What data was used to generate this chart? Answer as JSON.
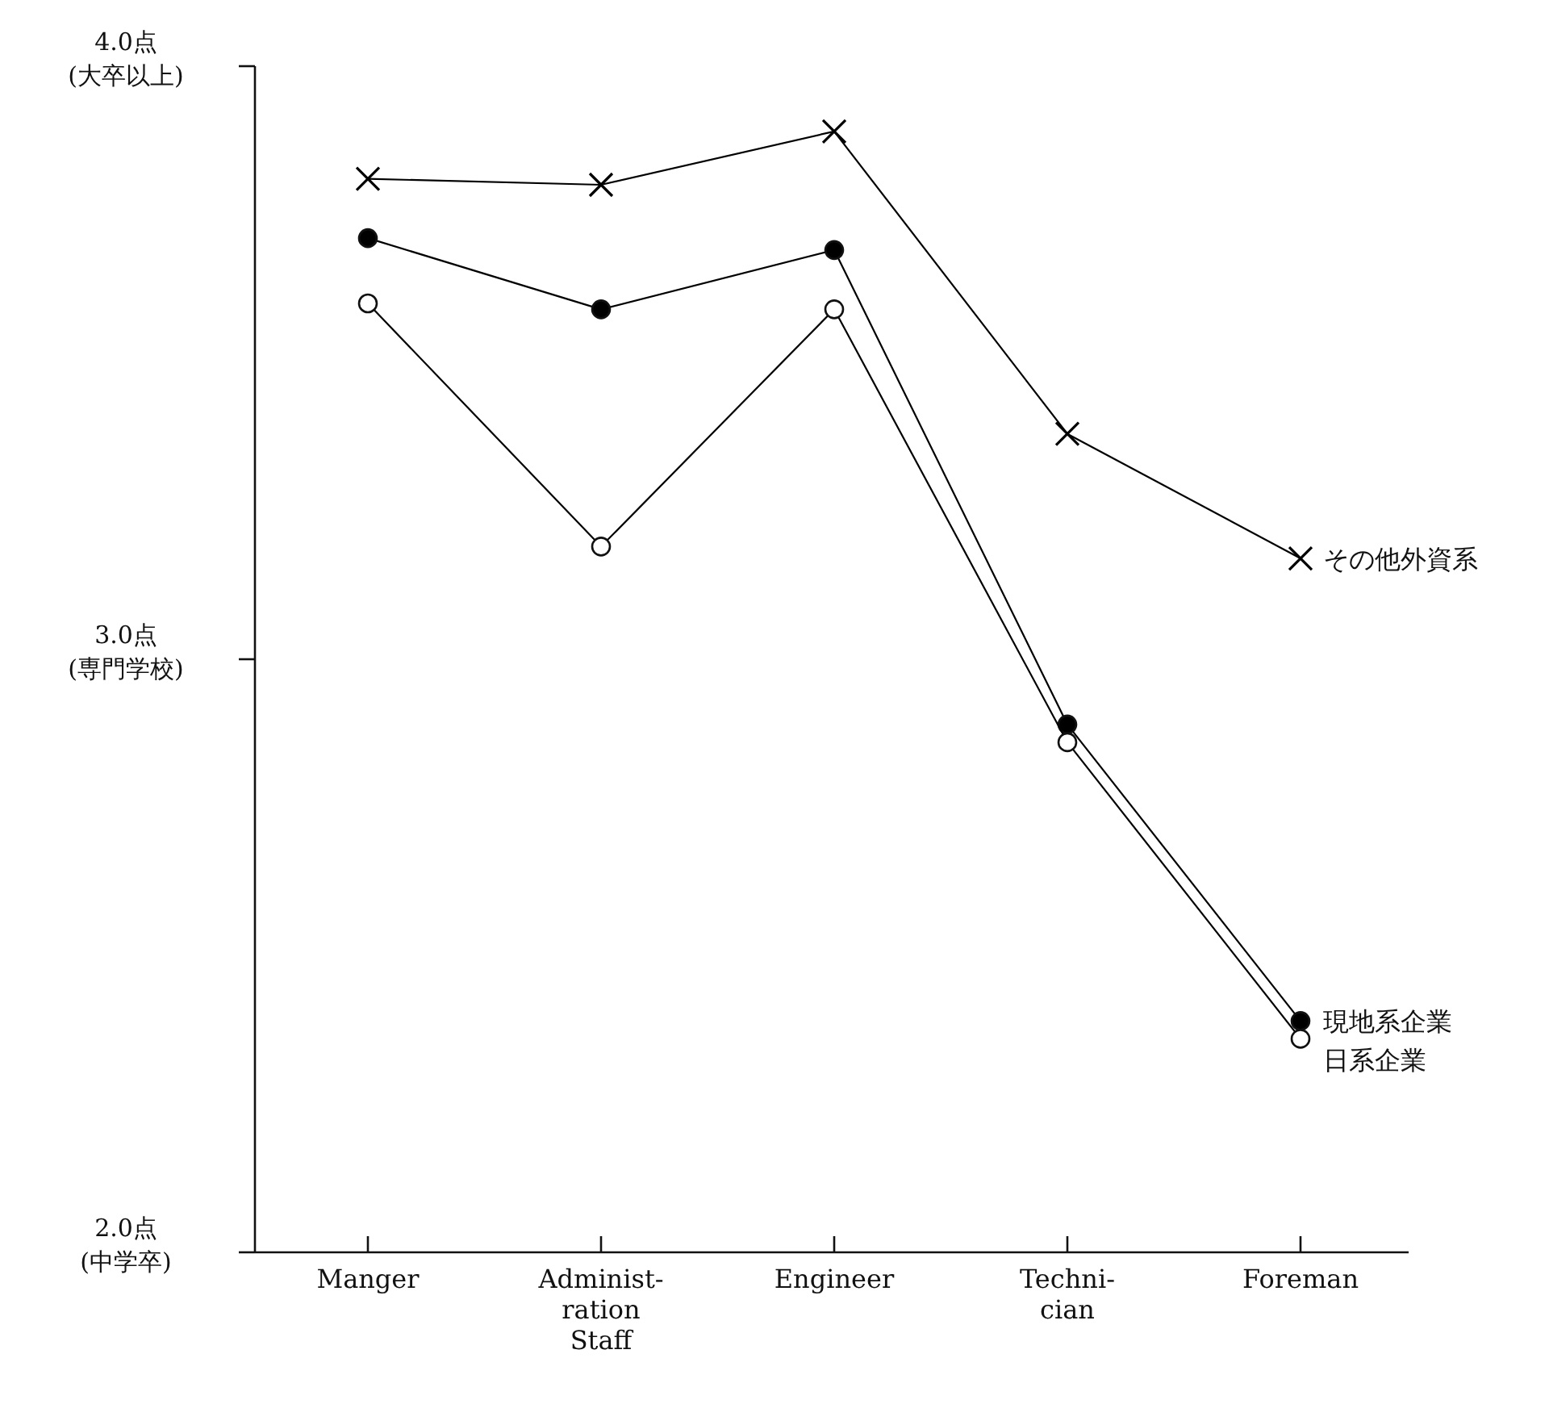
{
  "chart_data": {
    "type": "line",
    "categories": [
      "Manger",
      "Administ-\nration\nStaff",
      "Engineer",
      "Techni-\ncian",
      "Foreman"
    ],
    "ylim": [
      2.0,
      4.0
    ],
    "yticks": [
      {
        "value": 2.0,
        "label": "2.0点\n(中学卒)"
      },
      {
        "value": 3.0,
        "label": "3.0点\n(専門学校)"
      },
      {
        "value": 4.0,
        "label": "4.0点\n(大卒以上)"
      }
    ],
    "grid": false,
    "series": [
      {
        "name": "その他外資系",
        "color": "#000000",
        "marker": "cross",
        "values": [
          3.81,
          3.8,
          3.89,
          3.38,
          3.17
        ]
      },
      {
        "name": "現地系企業",
        "color": "#000000",
        "marker": "circle",
        "values": [
          3.71,
          3.59,
          3.69,
          2.89,
          2.39
        ]
      },
      {
        "name": "日系企業",
        "color": "#ffffff",
        "marker": "circle",
        "values": [
          3.6,
          3.19,
          3.59,
          2.86,
          2.36
        ]
      }
    ]
  }
}
